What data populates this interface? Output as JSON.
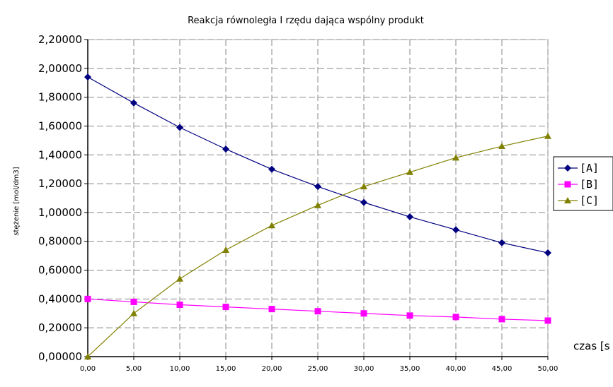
{
  "chart_data": {
    "type": "line",
    "title": "Reakcja równoległa I rzędu dająca wspólny produkt",
    "xlabel": "czas [s",
    "ylabel": "stężenie [mol/dm3]",
    "x": [
      0,
      5,
      10,
      15,
      20,
      25,
      30,
      35,
      40,
      45,
      50
    ],
    "x_tick_labels": [
      "0,00",
      "5,00",
      "10,00",
      "15,00",
      "20,00",
      "25,00",
      "30,00",
      "35,00",
      "40,00",
      "45,00",
      "50,00"
    ],
    "y_tick_values": [
      0,
      0.2,
      0.4,
      0.6,
      0.8,
      1.0,
      1.2,
      1.4,
      1.6,
      1.8,
      2.0,
      2.2
    ],
    "y_tick_labels": [
      "0,00000",
      "0,20000",
      "0,40000",
      "0,60000",
      "0,80000",
      "1,00000",
      "1,20000",
      "1,40000",
      "1,60000",
      "1,80000",
      "2,00000",
      "2,20000"
    ],
    "xlim": [
      0,
      50
    ],
    "ylim": [
      0,
      2.2
    ],
    "grid": true,
    "legend_position": "right",
    "series": [
      {
        "name": "[A]",
        "color": "#000080",
        "marker": "diamond",
        "values": [
          1.94,
          1.76,
          1.59,
          1.44,
          1.3,
          1.18,
          1.07,
          0.97,
          0.88,
          0.79,
          0.72
        ]
      },
      {
        "name": "[B]",
        "color": "#ff00ff",
        "marker": "square",
        "values": [
          0.4,
          0.38,
          0.36,
          0.345,
          0.33,
          0.315,
          0.3,
          0.285,
          0.275,
          0.26,
          0.25
        ]
      },
      {
        "name": "[C]",
        "color": "#808000",
        "marker": "triangle",
        "values": [
          0.0,
          0.3,
          0.54,
          0.74,
          0.91,
          1.05,
          1.18,
          1.28,
          1.38,
          1.46,
          1.53
        ]
      }
    ]
  }
}
